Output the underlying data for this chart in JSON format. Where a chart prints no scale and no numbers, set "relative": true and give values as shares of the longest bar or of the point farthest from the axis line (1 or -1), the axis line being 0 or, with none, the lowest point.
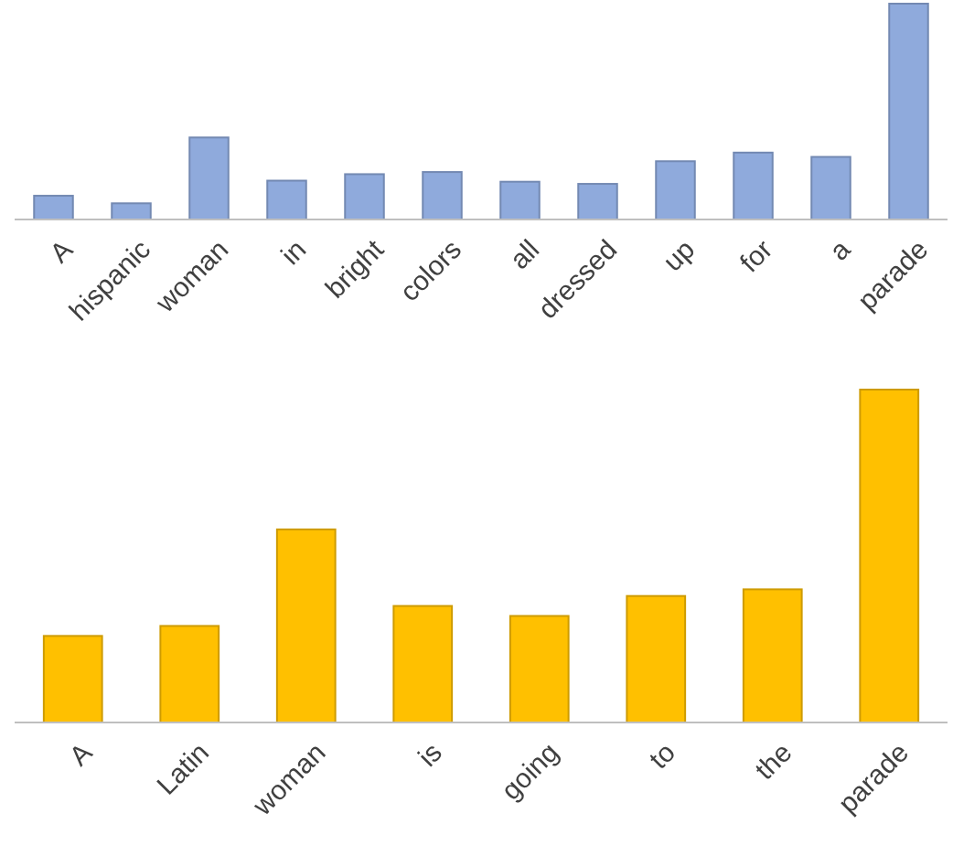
{
  "chart_data": [
    {
      "type": "bar",
      "relative": true,
      "categories": [
        "A",
        "hispanic",
        "woman",
        "in",
        "bright",
        "colors",
        "all",
        "dressed",
        "up",
        "for",
        "a",
        "parade"
      ],
      "values": [
        0.11,
        0.075,
        0.38,
        0.18,
        0.21,
        0.22,
        0.175,
        0.165,
        0.27,
        0.31,
        0.29,
        1
      ],
      "color": "#8faadc"
    },
    {
      "type": "bar",
      "relative": true,
      "categories": [
        "A",
        "Latin",
        "woman",
        "is",
        "going",
        "to",
        "the",
        "parade"
      ],
      "values": [
        0.26,
        0.29,
        0.58,
        0.35,
        0.32,
        0.38,
        0.4,
        1
      ],
      "color": "#ffc000"
    }
  ]
}
